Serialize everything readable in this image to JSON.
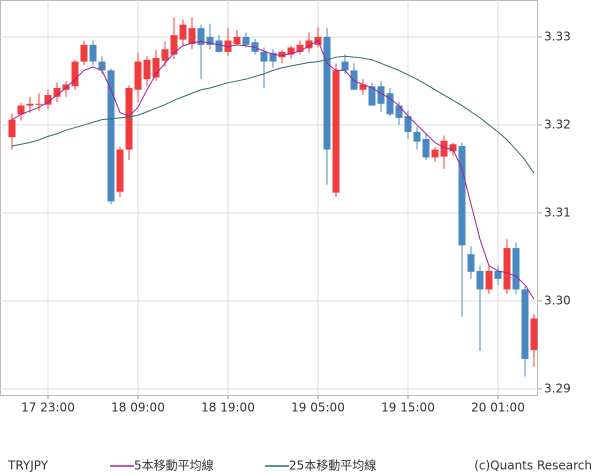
{
  "chart_data": {
    "type": "candlestick",
    "symbol": "TRYJPY",
    "copyright": "(c)Quants Research",
    "categories": [
      null,
      null,
      null,
      null,
      "17 23:00",
      null,
      null,
      null,
      null,
      null,
      null,
      null,
      null,
      null,
      "18 09:00",
      null,
      null,
      null,
      null,
      null,
      null,
      null,
      null,
      null,
      "18 19:00",
      null,
      null,
      null,
      null,
      null,
      null,
      null,
      null,
      null,
      "19 05:00",
      null,
      null,
      null,
      null,
      null,
      null,
      null,
      null,
      null,
      "19 15:00",
      null,
      null,
      null,
      null,
      null,
      null,
      null,
      null,
      null,
      "20 01:00",
      null,
      null,
      null,
      null
    ],
    "open": [
      3.3186,
      3.3212,
      3.3222,
      3.3224,
      3.3223,
      3.3232,
      3.324,
      3.3244,
      3.3272,
      3.3291,
      3.3272,
      3.3262,
      3.3124,
      3.3172,
      3.324,
      3.3252,
      3.3254,
      3.3273,
      3.328,
      3.3297,
      3.3292,
      3.331,
      3.33,
      3.3296,
      3.3283,
      3.3292,
      3.33,
      3.3294,
      3.3283,
      3.3282,
      3.3277,
      3.328,
      3.3283,
      3.3287,
      3.3291,
      3.33,
      3.3123,
      3.3272,
      3.3262,
      3.324,
      3.3244,
      3.3244,
      3.3236,
      3.3222,
      3.321,
      3.3192,
      3.3184,
      3.3163,
      3.3164,
      3.317,
      3.3176,
      3.3053,
      3.3034,
      3.3013,
      3.3034,
      3.3013,
      3.306,
      3.3013,
      3.2944
    ],
    "high": [
      3.3213,
      3.3225,
      3.3232,
      3.3236,
      3.324,
      3.3248,
      3.325,
      3.3274,
      3.3296,
      3.3296,
      3.3278,
      3.3264,
      3.3175,
      3.3245,
      3.3282,
      3.3278,
      3.3285,
      3.3295,
      3.3322,
      3.332,
      3.3322,
      3.3314,
      3.3315,
      3.3302,
      3.331,
      3.3308,
      3.3305,
      3.3298,
      3.3288,
      3.3286,
      3.3285,
      3.329,
      3.3296,
      3.3305,
      3.3311,
      3.331,
      3.327,
      3.328,
      3.327,
      3.3252,
      3.3248,
      3.325,
      3.3242,
      3.3226,
      3.3216,
      3.3198,
      3.319,
      3.3175,
      3.3188,
      3.318,
      3.318,
      3.3062,
      3.304,
      3.304,
      3.304,
      3.307,
      3.3066,
      3.3016,
      3.2985
    ],
    "low": [
      3.3172,
      3.3205,
      3.3214,
      3.3216,
      3.3218,
      3.3226,
      3.3232,
      3.324,
      3.3268,
      3.3268,
      3.3258,
      3.311,
      3.3118,
      3.316,
      3.3226,
      3.3244,
      3.325,
      3.3266,
      3.3275,
      3.329,
      3.3286,
      3.3252,
      3.3286,
      3.3282,
      3.3278,
      3.329,
      3.3288,
      3.328,
      3.3242,
      3.3265,
      3.327,
      3.3275,
      3.328,
      3.3282,
      3.3288,
      3.3132,
      3.3118,
      3.3258,
      3.324,
      3.3234,
      3.3222,
      3.3215,
      3.321,
      3.32,
      3.3184,
      3.3172,
      3.316,
      3.3158,
      3.315,
      3.3165,
      3.2982,
      3.3025,
      3.2943,
      3.3008,
      3.3018,
      3.3008,
      3.3008,
      3.2914,
      3.2925
    ],
    "close": [
      3.3206,
      3.3222,
      3.3224,
      3.3224,
      3.3234,
      3.3242,
      3.3246,
      3.3272,
      3.3291,
      3.3272,
      3.3262,
      3.3113,
      3.3172,
      3.3242,
      3.3272,
      3.3274,
      3.3276,
      3.3286,
      3.3302,
      3.3314,
      3.331,
      3.3291,
      3.3291,
      3.3283,
      3.3296,
      3.33,
      3.3291,
      3.3283,
      3.3272,
      3.3272,
      3.3283,
      3.3288,
      3.3291,
      3.3296,
      3.33,
      3.3172,
      3.3262,
      3.3262,
      3.324,
      3.3246,
      3.3222,
      3.3224,
      3.3212,
      3.3208,
      3.3192,
      3.3181,
      3.3163,
      3.3172,
      3.3182,
      3.3178,
      3.3063,
      3.3033,
      3.3013,
      3.3034,
      3.3025,
      3.306,
      3.3013,
      3.2934,
      3.298
    ],
    "up_color": "#f03c3c",
    "down_color": "#4a88c2",
    "series": [
      {
        "name": "5本移動平均線",
        "color": "#a020a0",
        "values": [
          3.3206,
          3.3212,
          3.3216,
          3.322,
          3.3226,
          3.3234,
          3.3242,
          3.3252,
          3.3262,
          3.3266,
          3.3262,
          3.324,
          3.3214,
          3.321,
          3.322,
          3.324,
          3.3258,
          3.327,
          3.3282,
          3.329,
          3.3293,
          3.3295,
          3.3293,
          3.3291,
          3.3289,
          3.3291,
          3.329,
          3.3288,
          3.3284,
          3.328,
          3.3279,
          3.3281,
          3.3284,
          3.329,
          3.3296,
          3.327,
          3.3262,
          3.3262,
          3.325,
          3.3246,
          3.3242,
          3.3236,
          3.323,
          3.3222,
          3.321,
          3.32,
          3.319,
          3.318,
          3.3174,
          3.3172,
          3.315,
          3.311,
          3.307,
          3.304,
          3.3034,
          3.3032,
          3.3028,
          3.3018,
          3.3002
        ]
      },
      {
        "name": "25本移動平均線",
        "color": "#2e6e6a",
        "values": [
          3.3176,
          3.3178,
          3.318,
          3.3183,
          3.3187,
          3.319,
          3.3194,
          3.3197,
          3.32,
          3.3203,
          3.3206,
          3.3207,
          3.3208,
          3.3209,
          3.3211,
          3.3215,
          3.3219,
          3.3223,
          3.3228,
          3.3232,
          3.3236,
          3.324,
          3.3242,
          3.3245,
          3.3248,
          3.325,
          3.3252,
          3.3255,
          3.3258,
          3.3262,
          3.3265,
          3.3267,
          3.3269,
          3.3271,
          3.3272,
          3.3274,
          3.3277,
          3.3278,
          3.3277,
          3.3276,
          3.3274,
          3.327,
          3.3266,
          3.3262,
          3.3257,
          3.3252,
          3.3246,
          3.324,
          3.3234,
          3.3228,
          3.3222,
          3.3215,
          3.3208,
          3.32,
          3.3192,
          3.3183,
          3.3172,
          3.316,
          3.3145
        ]
      }
    ],
    "ylim": [
      3.2893,
      3.3342
    ],
    "yticks": [
      3.29,
      {
        "value": 3.3,
        "label": "3.30"
      },
      3.31,
      3.32,
      3.33
    ],
    "grid": true
  }
}
